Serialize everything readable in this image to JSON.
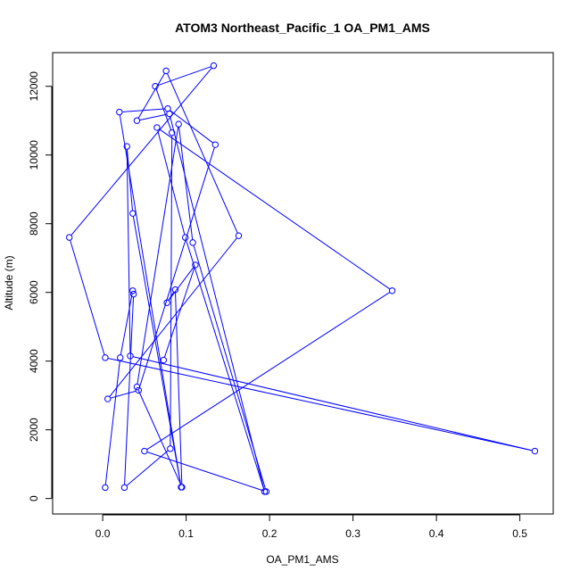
{
  "chart_data": {
    "type": "line",
    "title": "ATOM3 Northeast_Pacific_1 OA_PM1_AMS",
    "xlabel": "OA_PM1_AMS",
    "ylabel": "Altitude (m)",
    "xlim": [
      -0.06,
      0.54
    ],
    "ylim": [
      -450,
      12980
    ],
    "x_ticks": [
      0.0,
      0.1,
      0.2,
      0.3,
      0.4,
      0.5
    ],
    "x_tick_labels": [
      "0.0",
      "0.1",
      "0.2",
      "0.3",
      "0.4",
      "0.5"
    ],
    "y_ticks": [
      0,
      2000,
      4000,
      6000,
      8000,
      10000,
      12000
    ],
    "y_tick_labels": [
      "0",
      "2000",
      "4000",
      "6000",
      "8000",
      "10000",
      "12000"
    ],
    "grid": false,
    "legend": "none",
    "series_color": "#0000ff",
    "markers": "open-circle",
    "series": [
      {
        "x": [
          0.003,
          0.021,
          0.036,
          0.037,
          0.026,
          0.081,
          0.083,
          0.063,
          0.133,
          -0.04,
          0.003,
          0.518,
          0.033,
          0.029,
          0.036,
          0.094,
          0.02,
          0.078,
          0.135,
          0.043,
          0.006,
          0.163,
          0.076,
          0.041,
          0.08,
          0.194,
          0.099,
          0.065,
          0.347,
          0.05,
          0.196,
          0.108,
          0.091,
          0.041,
          0.095,
          0.087,
          0.077,
          0.111,
          0.073
        ],
        "y": [
          320,
          4100,
          6050,
          5950,
          320,
          1450,
          10650,
          12000,
          12600,
          7600,
          4100,
          1380,
          4150,
          10250,
          8300,
          330,
          11250,
          11350,
          10300,
          3150,
          2900,
          7650,
          12450,
          11000,
          11200,
          200,
          7600,
          10800,
          6050,
          1380,
          200,
          7450,
          10900,
          3250,
          330,
          6080,
          5700,
          6800,
          4030
        ]
      }
    ]
  }
}
